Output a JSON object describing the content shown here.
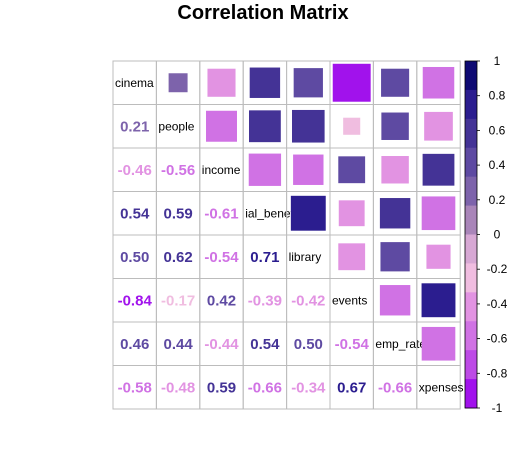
{
  "chart_data": {
    "type": "heatmap",
    "title": "Correlation Matrix",
    "variables": [
      "cinema",
      "people",
      "income",
      "ial_benefits",
      "library",
      "events",
      "emp_rate",
      "xpenses"
    ],
    "matrix": [
      [
        1.0,
        0.21,
        -0.46,
        0.54,
        0.5,
        -0.84,
        0.46,
        -0.58
      ],
      [
        0.21,
        1.0,
        -0.56,
        0.59,
        0.62,
        -0.17,
        0.44,
        -0.48
      ],
      [
        -0.46,
        -0.56,
        1.0,
        -0.61,
        -0.54,
        0.42,
        -0.44,
        0.59
      ],
      [
        0.54,
        0.59,
        -0.61,
        1.0,
        0.71,
        -0.39,
        0.54,
        -0.66
      ],
      [
        0.5,
        0.62,
        -0.54,
        0.71,
        1.0,
        -0.42,
        0.5,
        -0.34
      ],
      [
        -0.84,
        -0.17,
        0.42,
        -0.39,
        -0.42,
        1.0,
        -0.54,
        0.67
      ],
      [
        0.46,
        0.44,
        -0.44,
        0.54,
        0.5,
        -0.54,
        1.0,
        -0.66
      ],
      [
        -0.58,
        -0.48,
        0.59,
        -0.66,
        -0.34,
        0.67,
        -0.66,
        1.0
      ]
    ],
    "lower_triangle": "numbers",
    "upper_triangle": "squares",
    "colorbar": {
      "range": [
        -1,
        1
      ],
      "ticks": [
        "1",
        "0.8",
        "0.6",
        "0.4",
        "0.2",
        "0",
        "-0.2",
        "-0.4",
        "-0.6",
        "-0.8",
        "-1"
      ],
      "colors_top_to_bottom": [
        "#0e0a73",
        "#2b1d8f",
        "#443396",
        "#5e4aa2",
        "#7d63ab",
        "#a985b9",
        "#d7a8d4",
        "#f0bde0",
        "#e293e2",
        "#d072e4",
        "#bd4ae6",
        "#a112ec"
      ]
    },
    "grid": true,
    "legend": "right"
  }
}
